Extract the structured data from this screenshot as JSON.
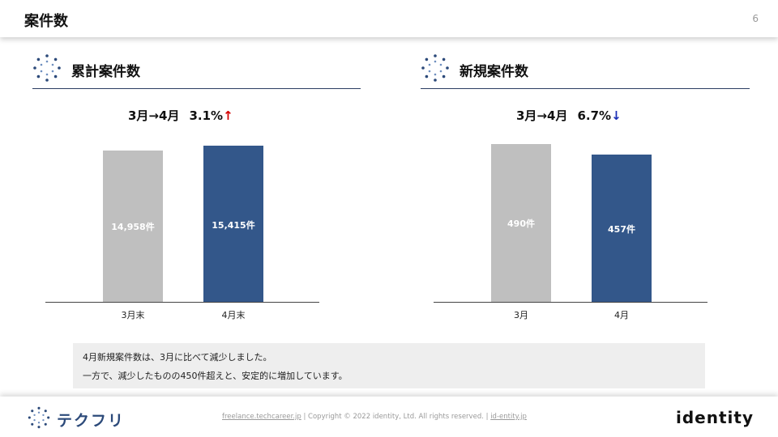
{
  "header": {
    "title": "案件数",
    "page_number": "6"
  },
  "sections": {
    "cumulative": {
      "title": "累計案件数",
      "change_period": "3月→4月",
      "change_pct": "3.1%",
      "change_arrow": "↑"
    },
    "new": {
      "title": "新規案件数",
      "change_period": "3月→4月",
      "change_pct": "6.7%",
      "change_arrow": "↓"
    }
  },
  "chart_data": [
    {
      "type": "bar",
      "title": "累計案件数",
      "categories": [
        "3月末",
        "4月末"
      ],
      "values": [
        14958,
        15415
      ],
      "value_labels": [
        "14,958件",
        "15,415件"
      ],
      "ylim": [
        0,
        15900
      ],
      "colors": [
        "#bfbfbf",
        "#33578a"
      ]
    },
    {
      "type": "bar",
      "title": "新規案件数",
      "categories": [
        "3月",
        "4月"
      ],
      "values": [
        490,
        457
      ],
      "value_labels": [
        "490件",
        "457件"
      ],
      "ylim": [
        0,
        500
      ],
      "colors": [
        "#bfbfbf",
        "#33578a"
      ]
    }
  ],
  "note": {
    "line1": "4月新規案件数は、3月に比べて減少しました。",
    "line2": "一方で、減少したものの450件超えと、安定的に増加しています。"
  },
  "footer": {
    "brand_left": "テクフリ",
    "link1": "freelance.techcareer.jp",
    "copyright": " | Copyright © 2022 identity, Ltd. All rights reserved. | ",
    "link2": "id-entity.jp",
    "brand_right": "identity"
  },
  "colors": {
    "accent": "#33578a",
    "muted_bar": "#bfbfbf",
    "up": "#d40000",
    "down": "#1a2fb5"
  }
}
